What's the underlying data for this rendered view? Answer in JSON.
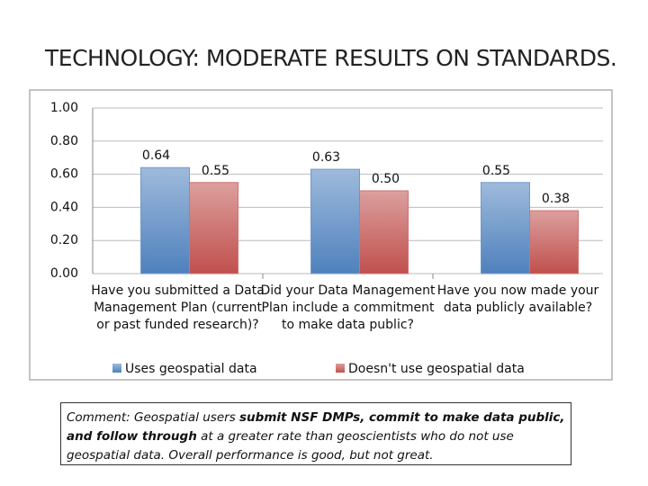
{
  "slide": {
    "title": "TECHNOLOGY: MODERATE RESULTS ON STANDARDS.",
    "comment": [
      {
        "text": "Comment:  Geospatial users ",
        "bold": false
      },
      {
        "text": "submit NSF DMPs, commit to make data public, and follow through",
        "bold": true
      },
      {
        "text": " at a greater rate than geoscientists who do not use geospatial data.  Overall performance is good, but not great.",
        "bold": false
      }
    ]
  },
  "chart_data": {
    "type": "bar",
    "categories": [
      "Have you submitted a Data Management Plan (current or past funded research)?",
      "Did your Data Management Plan include a commitment to make data public?",
      "Have you now made your data publicly available?"
    ],
    "series": [
      {
        "name": "Uses geospatial data",
        "color": "#4f81bd",
        "values": [
          0.64,
          0.63,
          0.55
        ],
        "value_labels": [
          "0.64",
          "0.63",
          "0.55"
        ]
      },
      {
        "name": "Doesn't use geospatial data",
        "color": "#c0504d",
        "values": [
          0.55,
          0.5,
          0.38
        ],
        "value_labels": [
          "0.55",
          "0.50",
          "0.38"
        ]
      }
    ],
    "ylim": [
      0,
      1
    ],
    "yticks": [
      {
        "value": 0,
        "label": "0.00"
      },
      {
        "value": 0.2,
        "label": "0.20"
      },
      {
        "value": 0.4,
        "label": "0.40"
      },
      {
        "value": 0.6,
        "label": "0.60"
      },
      {
        "value": 0.8,
        "label": "0.80"
      },
      {
        "value": 1,
        "label": "1.00"
      }
    ],
    "grid": true,
    "legend": "bottom"
  }
}
